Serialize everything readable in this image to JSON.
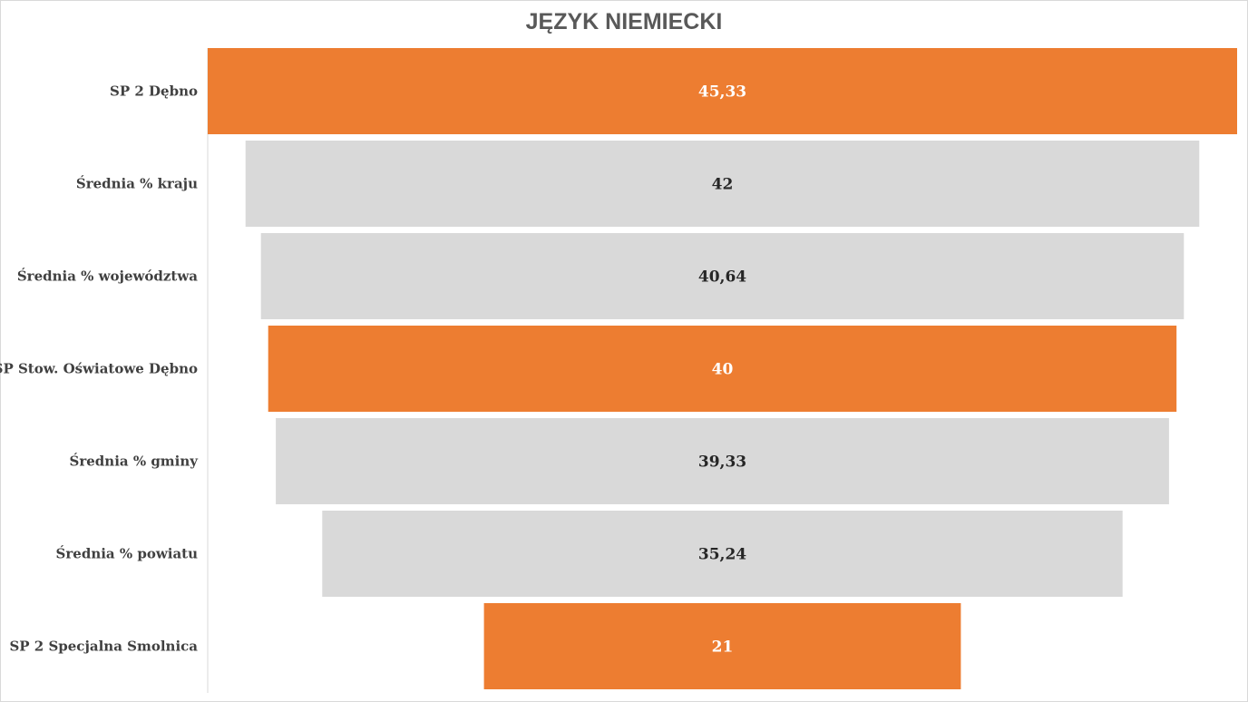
{
  "chart_data": {
    "type": "bar",
    "subtype": "funnel",
    "title": "JĘZYK NIEMIECKI",
    "xlabel": "",
    "ylabel": "",
    "grid": false,
    "legend": "none",
    "categories": [
      "SP 2 Dębno",
      "Średnia % kraju",
      "Średnia % województwa",
      "SP Stow. Oświatowe Dębno",
      "Średnia % gminy",
      "Średnia % powiatu",
      "SP 2 Specjalna Smolnica"
    ],
    "values": [
      45.33,
      42,
      40.64,
      40,
      39.33,
      35.24,
      21
    ],
    "value_labels": [
      "45,33",
      "42",
      "40,64",
      "40",
      "39,33",
      "35,24",
      "21"
    ],
    "highlight": [
      true,
      false,
      false,
      true,
      false,
      false,
      true
    ],
    "colors": {
      "highlight": "#ed7d31",
      "normal": "#d9d9d9",
      "highlight_text": "#ffffff",
      "normal_text": "#262626"
    }
  }
}
